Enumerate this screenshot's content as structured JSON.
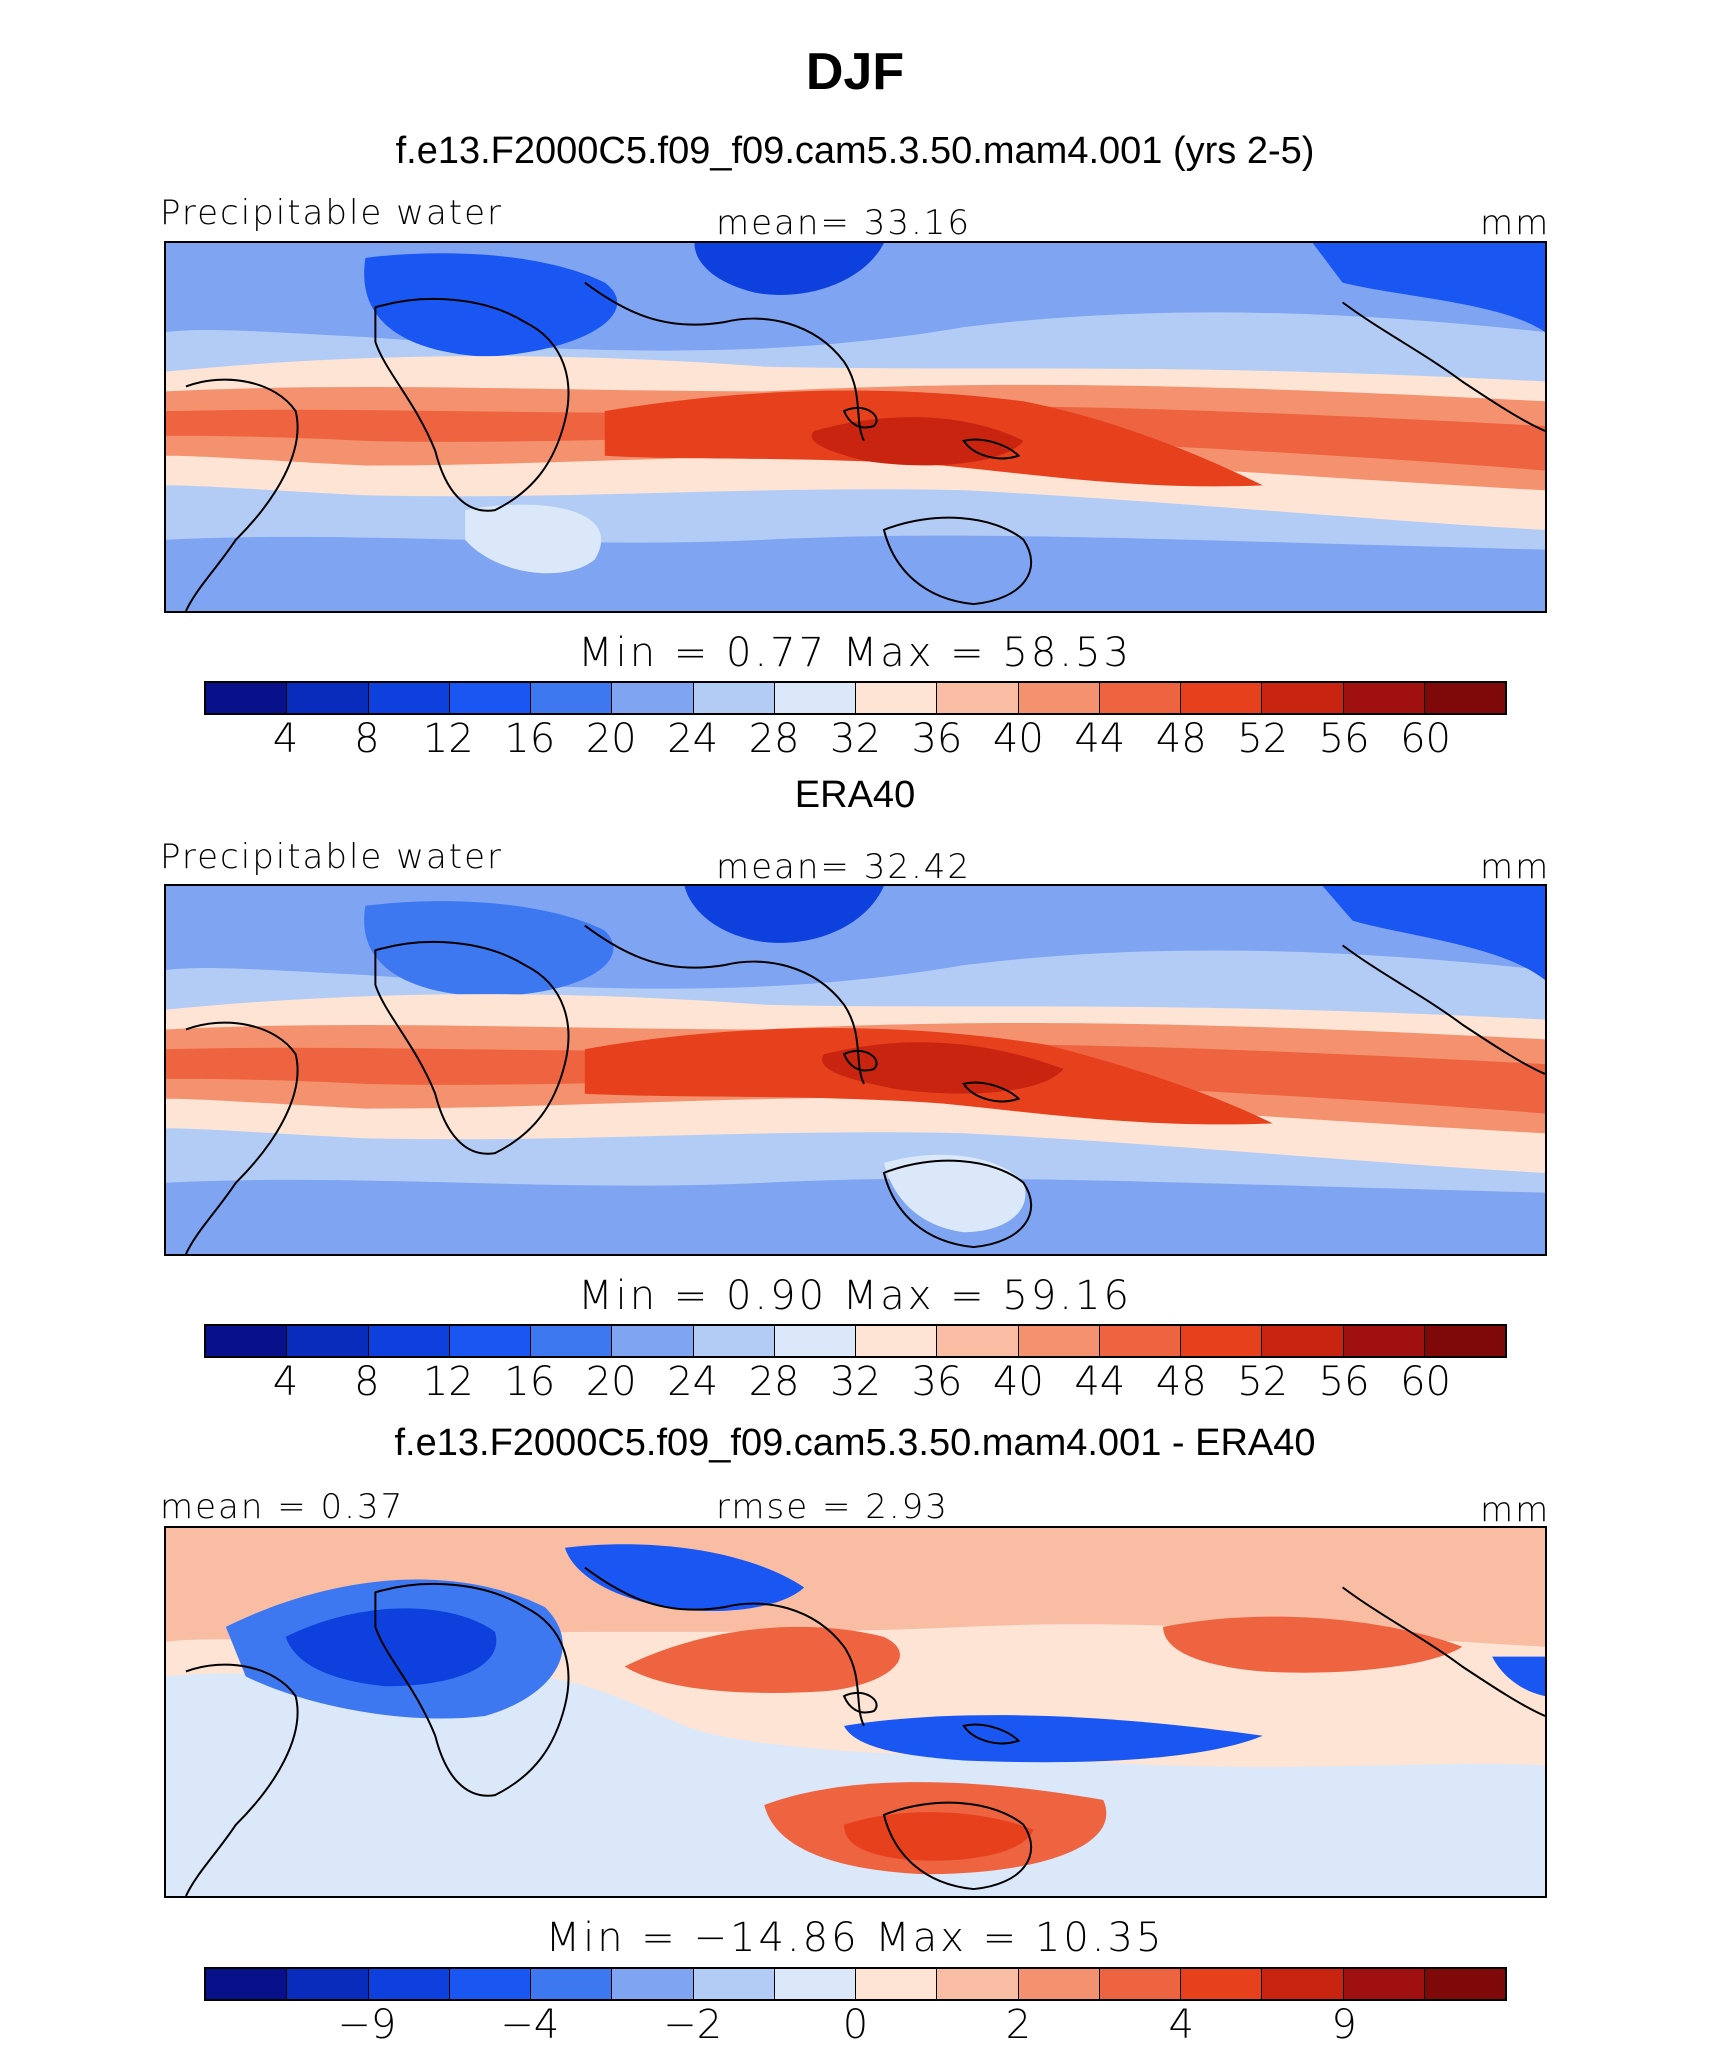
{
  "figure": {
    "title": "DJF"
  },
  "panels": [
    {
      "title": "f.e13.F2000C5.f09_f09.cam5.3.50.mam4.001 (yrs 2-5)",
      "left_label": "Precipitable water",
      "center_label": "mean=   33.16",
      "units": "mm",
      "stats": "Min =     0.77  Max =    58.53",
      "colorbar_ticks": [
        "4",
        "8",
        "12",
        "16",
        "20",
        "24",
        "28",
        "32",
        "36",
        "40",
        "44",
        "48",
        "52",
        "56",
        "60"
      ],
      "palette": [
        "#08108a",
        "#0a2cbd",
        "#0d40dc",
        "#1a57f2",
        "#3d78f0",
        "#7ea4f2",
        "#b2ccf5",
        "#dbe8fa",
        "#fde4d4",
        "#f8bda3",
        "#f4926f",
        "#ee6440",
        "#e6401d",
        "#c92410",
        "#a01010",
        "#7f0808"
      ]
    },
    {
      "title": "ERA40",
      "left_label": "Precipitable water",
      "center_label": "mean=   32.42",
      "units": "mm",
      "stats": "Min =     0.90  Max =    59.16",
      "colorbar_ticks": [
        "4",
        "8",
        "12",
        "16",
        "20",
        "24",
        "28",
        "32",
        "36",
        "40",
        "44",
        "48",
        "52",
        "56",
        "60"
      ],
      "palette": [
        "#08108a",
        "#0a2cbd",
        "#0d40dc",
        "#1a57f2",
        "#3d78f0",
        "#7ea4f2",
        "#b2ccf5",
        "#dbe8fa",
        "#fde4d4",
        "#f8bda3",
        "#f4926f",
        "#ee6440",
        "#e6401d",
        "#c92410",
        "#a01010",
        "#7f0808"
      ]
    },
    {
      "title": "f.e13.F2000C5.f09_f09.cam5.3.50.mam4.001 - ERA40",
      "left_label": "mean =    0.37",
      "center_label": "rmse =    2.93",
      "units": "mm",
      "stats": "Min = −14.86  Max =    10.35",
      "colorbar_ticks": [
        "−9",
        "−4",
        "−2",
        "0",
        "2",
        "4",
        "9"
      ],
      "palette": [
        "#08108a",
        "#0a2cbd",
        "#0d40dc",
        "#1a57f2",
        "#3d78f0",
        "#7ea4f2",
        "#b2ccf5",
        "#dbe8fa",
        "#fde4d4",
        "#f8bda3",
        "#f4926f",
        "#ee6440",
        "#e6401d",
        "#c92410",
        "#a01010",
        "#7f0808"
      ]
    }
  ]
}
